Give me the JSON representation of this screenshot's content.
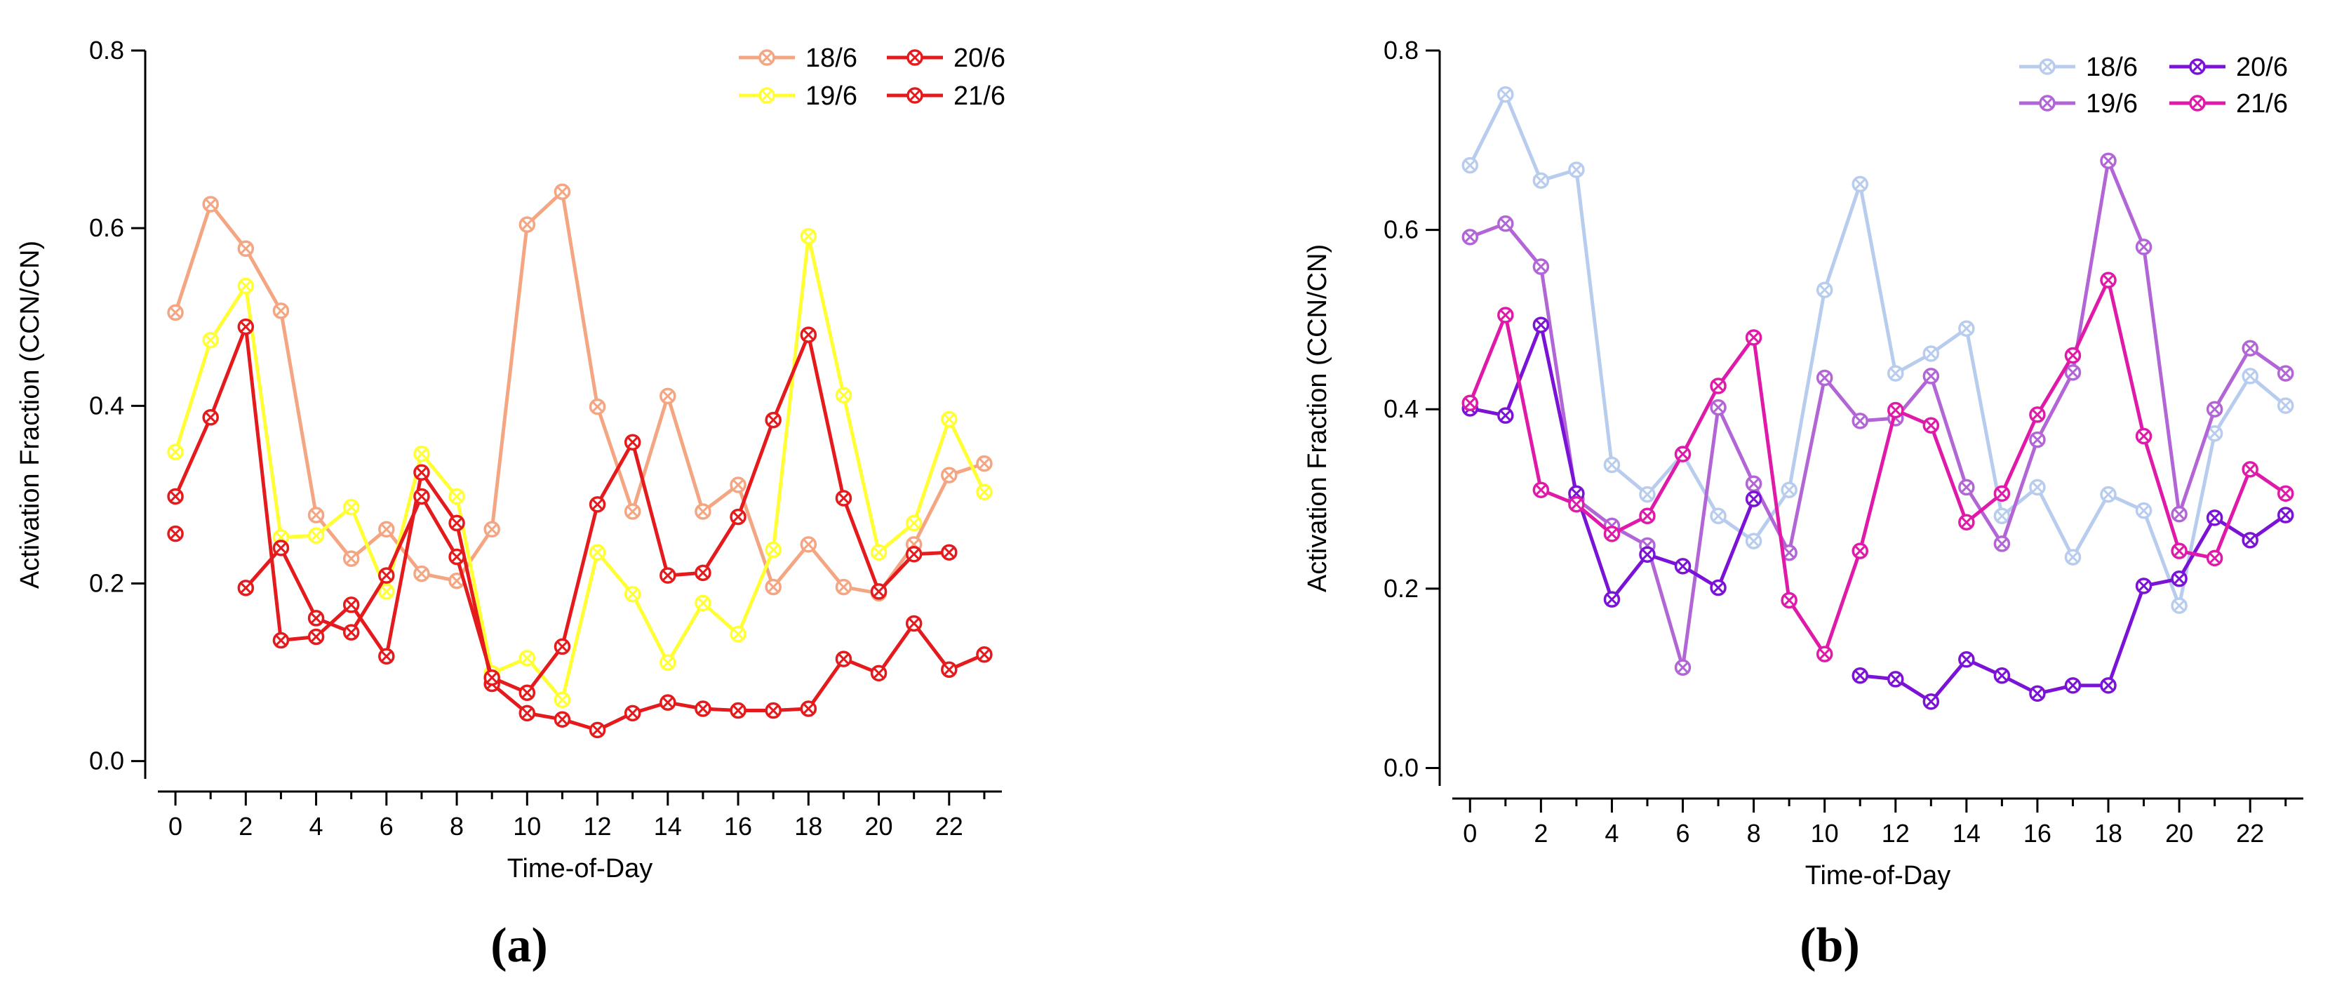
{
  "chart_data": [
    {
      "type": "line",
      "panel_label": "(a)",
      "xlabel": "Time-of-Day",
      "ylabel": "Activation Fraction (CCN/CN)",
      "xlim": [
        -0.5,
        23.5
      ],
      "ylim": [
        -0.02,
        0.8
      ],
      "xticks": [
        0,
        2,
        4,
        6,
        8,
        10,
        12,
        14,
        16,
        18,
        20,
        22
      ],
      "yticks": [
        0.0,
        0.2,
        0.4,
        0.6,
        0.8
      ],
      "ytick_labels": [
        "0.0",
        "0.2",
        "0.4",
        "0.6",
        "0.8"
      ],
      "legend_position": "top-right",
      "series": [
        {
          "name": "18/6",
          "color": "#F4A582",
          "x": [
            0,
            1,
            2,
            3,
            4,
            5,
            6,
            7,
            8,
            9,
            10,
            11,
            12,
            13,
            14,
            15,
            16,
            17,
            18,
            19,
            20,
            21,
            22,
            23
          ],
          "values": [
            0.505,
            0.627,
            0.577,
            0.507,
            0.277,
            0.228,
            0.261,
            0.211,
            0.203,
            0.261,
            0.604,
            0.641,
            0.399,
            0.281,
            0.411,
            0.281,
            0.311,
            0.196,
            0.244,
            0.196,
            0.189,
            0.244,
            0.322,
            0.335
          ]
        },
        {
          "name": "19/6",
          "color": "#FFFF33",
          "x": [
            0,
            1,
            2,
            3,
            4,
            5,
            6,
            7,
            8,
            9,
            10,
            11,
            12,
            13,
            14,
            15,
            16,
            17,
            18,
            19,
            20,
            21,
            22,
            23
          ],
          "values": [
            0.348,
            0.474,
            0.535,
            0.252,
            0.254,
            0.286,
            0.191,
            0.346,
            0.298,
            0.099,
            0.116,
            0.069,
            0.235,
            0.188,
            0.111,
            0.178,
            0.143,
            0.238,
            0.591,
            0.412,
            0.235,
            0.268,
            0.385,
            0.303
          ]
        },
        {
          "name": "20/6",
          "color": "#E41A1C",
          "x": [
            0,
            1,
            2,
            3,
            4,
            5,
            6,
            7,
            8,
            9,
            10,
            11,
            12,
            13,
            14,
            15,
            16,
            17,
            18,
            19,
            20,
            21,
            22,
            23
          ],
          "values": [
            0.298,
            0.387,
            0.489,
            0.136,
            0.14,
            0.176,
            0.118,
            0.325,
            0.268,
            0.087,
            0.054,
            0.047,
            0.035,
            0.054,
            0.066,
            0.059,
            0.057,
            0.057,
            0.059,
            0.115,
            0.099,
            0.155,
            0.103,
            0.12
          ]
        },
        {
          "name": "21/6",
          "color": "#E41A1C",
          "x": [
            0,
            1,
            2,
            3,
            4,
            5,
            6,
            7,
            8,
            9,
            10,
            11,
            12,
            13,
            14,
            15,
            16,
            17,
            18,
            19,
            20,
            21,
            22,
            23
          ],
          "values": [
            0.256,
            null,
            0.195,
            0.24,
            0.161,
            0.145,
            0.209,
            0.298,
            0.23,
            0.094,
            0.077,
            0.129,
            0.289,
            0.359,
            0.209,
            0.212,
            0.275,
            0.384,
            0.48,
            0.296,
            0.191,
            0.233,
            0.235,
            null
          ]
        }
      ]
    },
    {
      "type": "line",
      "panel_label": "(b)",
      "xlabel": "Time-of-Day",
      "ylabel": "Activation Fraction (CCN/CN)",
      "xlim": [
        -0.5,
        23.5
      ],
      "ylim": [
        -0.02,
        0.8
      ],
      "xticks": [
        0,
        2,
        4,
        6,
        8,
        10,
        12,
        14,
        16,
        18,
        20,
        22
      ],
      "yticks": [
        0.0,
        0.2,
        0.4,
        0.6,
        0.8
      ],
      "ytick_labels": [
        "0.0",
        "0.2",
        "0.4",
        "0.6",
        "0.8"
      ],
      "legend_position": "top-right",
      "series": [
        {
          "name": "18/6",
          "color": "#B8CCEE",
          "x": [
            0,
            1,
            2,
            3,
            4,
            5,
            6,
            7,
            8,
            9,
            10,
            11,
            12,
            13,
            14,
            15,
            16,
            17,
            18,
            19,
            20,
            21,
            22,
            23
          ],
          "values": [
            0.672,
            0.751,
            0.655,
            0.667,
            0.338,
            0.305,
            0.35,
            0.281,
            0.253,
            0.31,
            0.533,
            0.651,
            0.44,
            0.462,
            0.49,
            0.281,
            0.313,
            0.235,
            0.305,
            0.287,
            0.181,
            0.373,
            0.437,
            0.404
          ]
        },
        {
          "name": "19/6",
          "color": "#B266D6",
          "x": [
            0,
            1,
            2,
            3,
            4,
            5,
            6,
            7,
            8,
            9,
            10,
            11,
            12,
            13,
            14,
            15,
            16,
            17,
            18,
            19,
            20,
            21,
            22,
            23
          ],
          "values": [
            0.592,
            0.607,
            0.559,
            0.3,
            0.27,
            0.248,
            0.112,
            0.402,
            0.317,
            0.24,
            0.435,
            0.387,
            0.39,
            0.437,
            0.313,
            0.25,
            0.366,
            0.441,
            0.677,
            0.581,
            0.283,
            0.4,
            0.468,
            0.44
          ]
        },
        {
          "name": "20/6",
          "color": "#7B13D6",
          "x": [
            0,
            1,
            2,
            3,
            4,
            5,
            6,
            7,
            8,
            9,
            10,
            11,
            12,
            13,
            14,
            15,
            16,
            17,
            18,
            19,
            20,
            21,
            22,
            23
          ],
          "values": [
            0.401,
            0.393,
            0.494,
            0.306,
            0.188,
            0.238,
            0.225,
            0.201,
            0.3,
            null,
            null,
            0.103,
            0.099,
            0.074,
            0.121,
            0.103,
            0.083,
            0.092,
            0.092,
            0.203,
            0.211,
            0.279,
            0.254,
            0.282
          ]
        },
        {
          "name": "21/6",
          "color": "#E01AA8",
          "x": [
            0,
            1,
            2,
            3,
            4,
            5,
            6,
            7,
            8,
            9,
            10,
            11,
            12,
            13,
            14,
            15,
            16,
            17,
            18,
            19,
            20,
            21,
            22,
            23
          ],
          "values": [
            0.407,
            0.505,
            0.31,
            0.294,
            0.261,
            0.281,
            0.35,
            0.426,
            0.48,
            0.187,
            0.127,
            0.242,
            0.399,
            0.382,
            0.274,
            0.306,
            0.394,
            0.46,
            0.544,
            0.37,
            0.242,
            0.234,
            0.333,
            0.306
          ]
        }
      ]
    }
  ]
}
